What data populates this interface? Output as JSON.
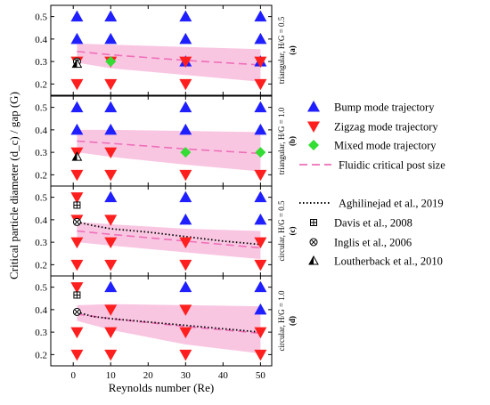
{
  "chart_data": {
    "type": "scatter",
    "xlabel": "Reynolds number (Re)",
    "ylabel": "Critical particle diameter (d_c) / gap (G)",
    "xlim": [
      -6,
      53
    ],
    "ylim": [
      0.15,
      0.55
    ],
    "xticks": [
      0,
      10,
      20,
      30,
      40,
      50
    ],
    "yticks": [
      0.2,
      0.3,
      0.4,
      0.5
    ],
    "grid": false,
    "legend": {
      "placement": "right",
      "entries": [
        {
          "label": "Bump mode trajectory",
          "marker": "triangle-up",
          "color": "#1f1fff"
        },
        {
          "label": "Zigzag mode trajectory",
          "marker": "triangle-down",
          "color": "#ff1f1f"
        },
        {
          "label": "Mixed mode trajectory",
          "marker": "diamond",
          "color": "#33dd33"
        },
        {
          "label": "Fluidic critical post size",
          "marker": "dash",
          "color": "#ee6fb8"
        },
        {
          "label": "Aghilinejad et al., 2019",
          "marker": "dot",
          "color": "#000000"
        },
        {
          "label": "Davis et al., 2008",
          "marker": "square-plus",
          "color": "#000000"
        },
        {
          "label": "Inglis et al., 2006",
          "marker": "circle-x",
          "color": "#000000"
        },
        {
          "label": "Loutherback et al., 2010",
          "marker": "half-triangle",
          "color": "#000000"
        }
      ]
    },
    "colors": {
      "bump": "#1f1fff",
      "zigzag": "#ff1f1f",
      "mixed": "#33dd33",
      "band": "#f9c6e2",
      "fluidic": "#ee6fb8",
      "aghilinejad": "#000000"
    },
    "panels": [
      {
        "id": "a",
        "side_label": "triangular, H/G = 0.5",
        "panel_tag": "(a)",
        "bump": [
          [
            1,
            0.5
          ],
          [
            1,
            0.4
          ],
          [
            10,
            0.5
          ],
          [
            10,
            0.4
          ],
          [
            30,
            0.5
          ],
          [
            30,
            0.4
          ],
          [
            30,
            0.3
          ],
          [
            50,
            0.5
          ],
          [
            50,
            0.4
          ],
          [
            50,
            0.3
          ]
        ],
        "zigzag": [
          [
            1,
            0.3
          ],
          [
            1,
            0.2
          ],
          [
            10,
            0.3
          ],
          [
            10,
            0.2
          ],
          [
            30,
            0.3
          ],
          [
            30,
            0.2
          ],
          [
            50,
            0.3
          ],
          [
            50,
            0.2
          ]
        ],
        "mixed": [
          [
            10,
            0.3
          ]
        ],
        "fluidic": {
          "x": [
            1,
            10,
            30,
            50
          ],
          "y": [
            0.345,
            0.33,
            0.305,
            0.285
          ]
        },
        "band": {
          "x": [
            1,
            10,
            30,
            50
          ],
          "upper": [
            0.38,
            0.375,
            0.365,
            0.355
          ],
          "lower": [
            0.295,
            0.27,
            0.24,
            0.21
          ]
        },
        "aghilinejad": null,
        "davis": [],
        "inglis": [
          [
            1,
            0.3
          ]
        ],
        "loutherback": [
          [
            1,
            0.29
          ]
        ]
      },
      {
        "id": "b",
        "side_label": "triangular, H/G = 1.0",
        "panel_tag": "(b)",
        "bump": [
          [
            1,
            0.5
          ],
          [
            1,
            0.4
          ],
          [
            10,
            0.5
          ],
          [
            10,
            0.4
          ],
          [
            30,
            0.5
          ],
          [
            30,
            0.4
          ],
          [
            50,
            0.5
          ],
          [
            50,
            0.4
          ]
        ],
        "zigzag": [
          [
            1,
            0.3
          ],
          [
            1,
            0.2
          ],
          [
            10,
            0.3
          ],
          [
            10,
            0.2
          ],
          [
            30,
            0.2
          ],
          [
            50,
            0.2
          ]
        ],
        "mixed": [
          [
            30,
            0.3
          ],
          [
            50,
            0.3
          ]
        ],
        "fluidic": {
          "x": [
            1,
            10,
            30,
            50
          ],
          "y": [
            0.35,
            0.34,
            0.315,
            0.295
          ]
        },
        "band": {
          "x": [
            1,
            10,
            30,
            50
          ],
          "upper": [
            0.4,
            0.4,
            0.395,
            0.39
          ],
          "lower": [
            0.3,
            0.28,
            0.245,
            0.215
          ]
        },
        "aghilinejad": null,
        "davis": [],
        "inglis": [],
        "loutherback": [
          [
            1,
            0.28
          ]
        ]
      },
      {
        "id": "c",
        "side_label": "circular, H/G = 0.5",
        "panel_tag": "(c)",
        "bump": [
          [
            10,
            0.5
          ],
          [
            30,
            0.5
          ],
          [
            30,
            0.4
          ],
          [
            50,
            0.5
          ],
          [
            50,
            0.4
          ]
        ],
        "zigzag": [
          [
            1,
            0.5
          ],
          [
            1,
            0.4
          ],
          [
            1,
            0.3
          ],
          [
            1,
            0.2
          ],
          [
            10,
            0.4
          ],
          [
            10,
            0.3
          ],
          [
            10,
            0.2
          ],
          [
            30,
            0.3
          ],
          [
            30,
            0.2
          ],
          [
            50,
            0.3
          ],
          [
            50,
            0.2
          ]
        ],
        "mixed": [],
        "fluidic": {
          "x": [
            1,
            10,
            30,
            50
          ],
          "y": [
            0.35,
            0.335,
            0.305,
            0.275
          ]
        },
        "band": {
          "x": [
            1,
            10,
            30,
            50
          ],
          "upper": [
            0.39,
            0.38,
            0.36,
            0.35
          ],
          "lower": [
            0.3,
            0.285,
            0.255,
            0.225
          ]
        },
        "aghilinejad": {
          "x": [
            1,
            5,
            10,
            20,
            30,
            40,
            50
          ],
          "y": [
            0.39,
            0.375,
            0.36,
            0.345,
            0.325,
            0.305,
            0.29
          ]
        },
        "davis": [
          [
            1,
            0.465
          ]
        ],
        "inglis": [
          [
            1,
            0.39
          ]
        ],
        "loutherback": []
      },
      {
        "id": "d",
        "side_label": "circular, H/G = 1.0",
        "panel_tag": "(d)",
        "bump": [
          [
            10,
            0.5
          ],
          [
            30,
            0.5
          ],
          [
            50,
            0.5
          ],
          [
            50,
            0.4
          ]
        ],
        "zigzag": [
          [
            1,
            0.5
          ],
          [
            1,
            0.3
          ],
          [
            1,
            0.2
          ],
          [
            10,
            0.4
          ],
          [
            10,
            0.3
          ],
          [
            10,
            0.2
          ],
          [
            30,
            0.4
          ],
          [
            30,
            0.3
          ],
          [
            30,
            0.2
          ],
          [
            50,
            0.3
          ],
          [
            50,
            0.2
          ]
        ],
        "mixed": [],
        "fluidic": {
          "x": [
            1,
            10,
            30,
            50
          ],
          "y": [
            0.38,
            0.36,
            0.325,
            0.295
          ]
        },
        "band": {
          "x": [
            1,
            10,
            30,
            50
          ],
          "upper": [
            0.42,
            0.425,
            0.42,
            0.415
          ],
          "lower": [
            0.35,
            0.31,
            0.245,
            0.205
          ]
        },
        "aghilinejad": {
          "x": [
            1,
            5,
            10,
            20,
            30,
            40,
            50
          ],
          "y": [
            0.39,
            0.37,
            0.36,
            0.345,
            0.33,
            0.315,
            0.3
          ]
        },
        "davis": [
          [
            1,
            0.465
          ]
        ],
        "inglis": [
          [
            1,
            0.39
          ]
        ],
        "loutherback": []
      }
    ]
  }
}
